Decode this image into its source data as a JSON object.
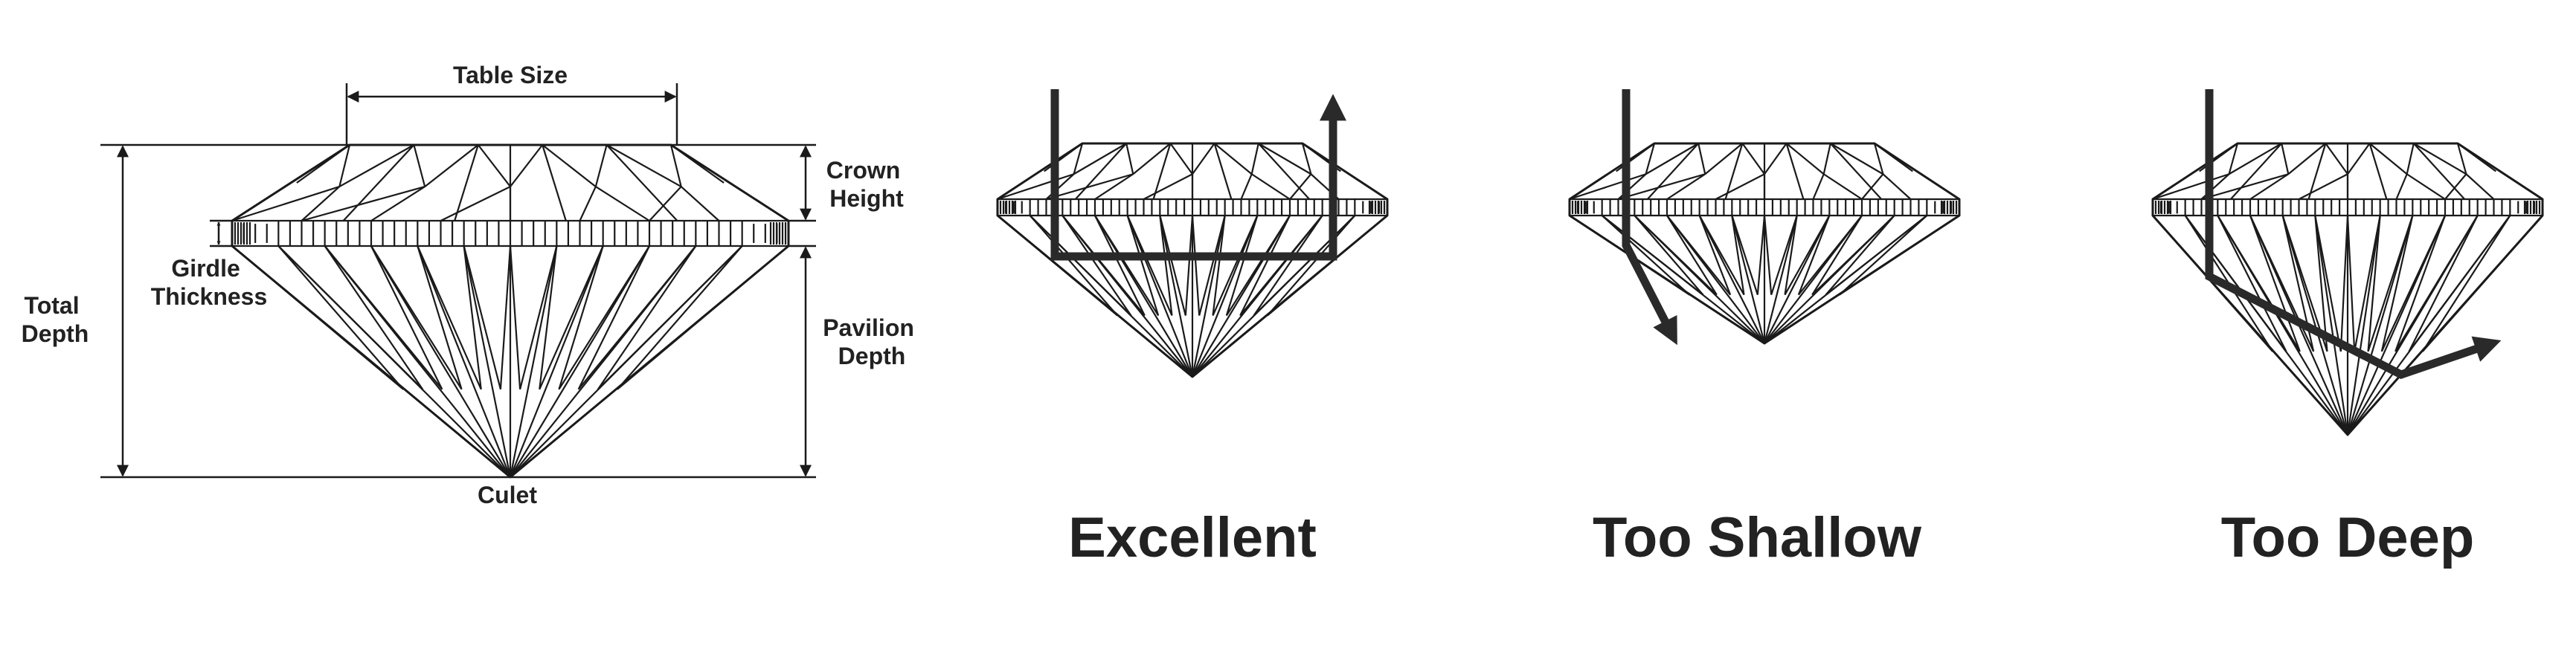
{
  "anatomy": {
    "table_size": "Table Size",
    "crown_height": [
      "Crown",
      "Height"
    ],
    "girdle_thickness": [
      "Girdle",
      "Thickness"
    ],
    "total_depth": [
      "Total",
      "Depth"
    ],
    "pavilion_depth": [
      "Pavilion",
      "Depth"
    ],
    "culet": "Culet"
  },
  "cuts": [
    {
      "id": "excellent",
      "label": "Excellent"
    },
    {
      "id": "too-shallow",
      "label": "Too Shallow"
    },
    {
      "id": "too-deep",
      "label": "Too Deep"
    }
  ],
  "colors": {
    "line": "#1a1a1a",
    "ray": "#2a2a2a",
    "text": "#222222"
  }
}
